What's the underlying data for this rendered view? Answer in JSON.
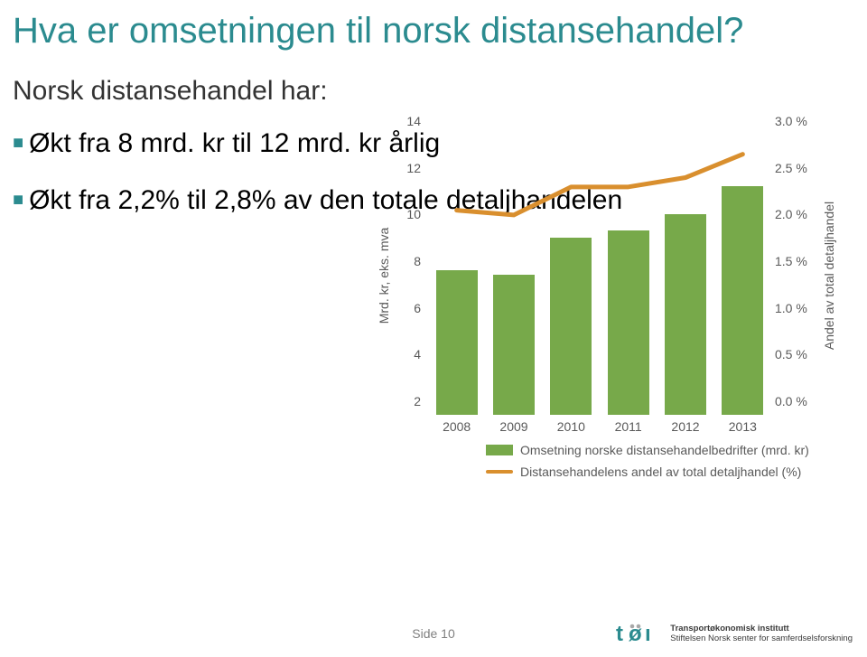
{
  "title_text": "Hva er omsetningen til norsk distansehandel?",
  "title_color": "#2b8b8f",
  "subtitle_text": "Norsk distansehandel har:",
  "subtitle_color": "#333333",
  "bullets": [
    "Økt fra 8 mrd. kr til 12 mrd. kr årlig",
    "Økt fra 2,2% til 2,8% av den totale detaljhandelen"
  ],
  "bullet_marker_color": "#2b8b8f",
  "chart": {
    "type": "bar+line",
    "categories": [
      "2008",
      "2009",
      "2010",
      "2011",
      "2012",
      "2013"
    ],
    "bar_values": [
      8.2,
      8.0,
      9.6,
      9.9,
      10.6,
      11.8
    ],
    "bar_color": "#77a94a",
    "line_values": [
      2.2,
      2.15,
      2.45,
      2.45,
      2.55,
      2.8
    ],
    "line_color": "#d98f2e",
    "line_width": 5,
    "y_left": {
      "min": 2,
      "max": 14,
      "step": 2,
      "title": "Mrd. kr, eks. mva"
    },
    "y_right": {
      "min": 0.0,
      "max": 3.0,
      "step": 0.5,
      "title": "Andel av total detaljhandel",
      "suffix": " %"
    },
    "axis_label_color": "#595959",
    "legend": [
      "Omsetning norske distansehandelbedrifter (mrd. kr)",
      "Distansehandelens andel av total detaljhandel (%)"
    ]
  },
  "footer": {
    "page": "Side 10",
    "logo_wordmark_color": "#2b8b8f",
    "logo_dots": "#a8a8a8",
    "org_line1": "Transportøkonomisk institutt",
    "org_line2": "Stiftelsen Norsk senter for samferdselsforskning"
  }
}
